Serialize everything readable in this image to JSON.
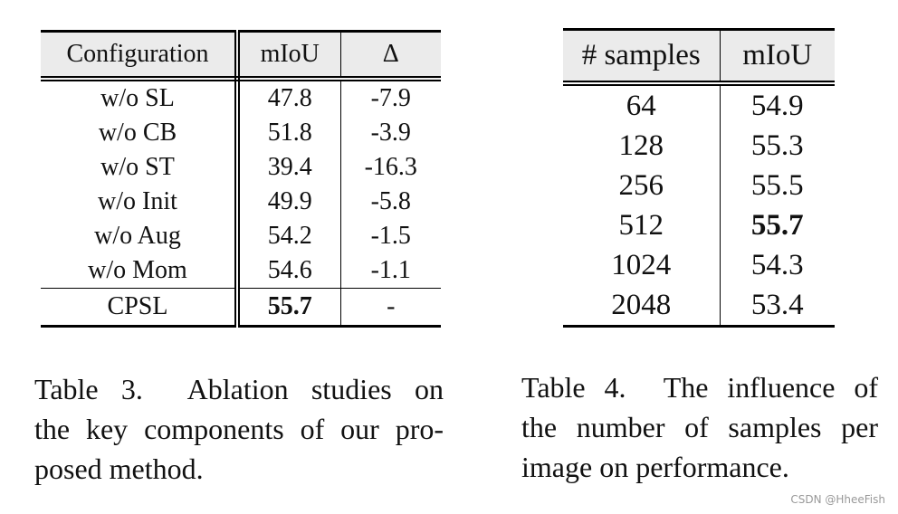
{
  "table3": {
    "header": [
      "Configuration",
      "mIoU",
      "Δ"
    ],
    "rows": [
      [
        "w/o SL",
        "47.8",
        "-7.9"
      ],
      [
        "w/o CB",
        "51.8",
        "-3.9"
      ],
      [
        "w/o ST",
        "39.4",
        "-16.3"
      ],
      [
        "w/o Init",
        "49.9",
        "-5.8"
      ],
      [
        "w/o Aug",
        "54.2",
        "-1.5"
      ],
      [
        "w/o Mom",
        "54.6",
        "-1.1"
      ],
      [
        "CPSL",
        "55.7",
        "-"
      ]
    ],
    "caption": [
      "Table 3.  Ablation studies on",
      "the key components of our pro-",
      "posed method."
    ]
  },
  "table4": {
    "header": [
      "# samples",
      "mIoU"
    ],
    "rows": [
      [
        "64",
        "54.9"
      ],
      [
        "128",
        "55.3"
      ],
      [
        "256",
        "55.5"
      ],
      [
        "512",
        "55.7"
      ],
      [
        "1024",
        "54.3"
      ],
      [
        "2048",
        "53.4"
      ]
    ],
    "caption": [
      "Table 4.  The influence of",
      "the number of samples per",
      "image on performance."
    ]
  },
  "watermark": "CSDN @HheeFish"
}
